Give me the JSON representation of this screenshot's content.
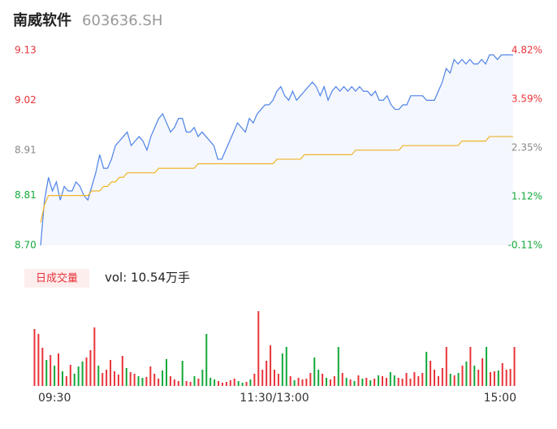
{
  "header": {
    "name": "南威软件",
    "code": "603636.SH"
  },
  "chart_data": {
    "type": "intraday",
    "x": [
      0,
      2,
      4,
      6,
      8,
      10,
      12,
      14,
      16,
      18,
      20,
      22,
      24,
      26,
      28,
      30,
      32,
      34,
      36,
      38,
      40,
      42,
      44,
      46,
      48,
      50,
      52,
      54,
      56,
      58,
      60,
      62,
      64,
      66,
      68,
      70,
      72,
      74,
      76,
      78,
      80,
      82,
      84,
      86,
      88,
      90,
      92,
      94,
      96,
      98,
      100,
      102,
      104,
      106,
      108,
      110,
      112,
      114,
      116,
      118,
      120,
      122,
      124,
      126,
      128,
      130,
      132,
      134,
      136,
      138,
      140,
      142,
      144,
      146,
      148,
      150,
      152,
      154,
      156,
      158,
      160,
      162,
      164,
      166,
      168,
      170,
      172,
      174,
      176,
      178,
      180,
      182,
      184,
      186,
      188,
      190,
      192,
      194,
      196,
      198,
      200,
      202,
      204,
      206,
      208,
      210,
      212,
      214,
      216,
      218,
      220,
      222,
      224,
      226,
      228,
      230,
      232,
      234,
      236,
      238,
      240
    ],
    "xlim": [
      0,
      240
    ],
    "xticks": [
      {
        "value": 0,
        "label": "09:30"
      },
      {
        "value": 120,
        "label": "11:30/13:00"
      },
      {
        "value": 240,
        "label": "15:00"
      }
    ],
    "ylim": [
      8.7,
      9.13
    ],
    "yticks": [
      {
        "value": 8.7,
        "label": "8.70"
      },
      8.81,
      8.91,
      9.02,
      9.13
    ],
    "y2lim": [
      -0.11,
      4.82
    ],
    "y2ticks": [
      {
        "value": -0.11,
        "label": "-0.11%"
      },
      {
        "value": 1.12,
        "label": "1.12%"
      },
      {
        "value": 2.35,
        "label": "2.35%"
      },
      {
        "value": 3.59,
        "label": "3.59%"
      },
      {
        "value": 4.82,
        "label": "4.82%"
      }
    ],
    "up_color": "#e8343a",
    "down_color": "#14a83b",
    "flat_color": "#888888",
    "series": [
      {
        "color": "#4e82e6",
        "values": [
          8.7,
          8.8,
          8.85,
          8.82,
          8.84,
          8.8,
          8.83,
          8.82,
          8.82,
          8.84,
          8.83,
          8.81,
          8.8,
          8.83,
          8.86,
          8.9,
          8.87,
          8.87,
          8.89,
          8.92,
          8.93,
          8.94,
          8.95,
          8.92,
          8.93,
          8.94,
          8.93,
          8.91,
          8.94,
          8.96,
          8.98,
          8.99,
          8.97,
          8.95,
          8.96,
          8.98,
          8.98,
          8.95,
          8.95,
          8.96,
          8.94,
          8.95,
          8.94,
          8.93,
          8.92,
          8.89,
          8.89,
          8.91,
          8.93,
          8.95,
          8.97,
          8.96,
          8.95,
          8.98,
          8.97,
          8.99,
          9.0,
          9.01,
          9.01,
          9.02,
          9.04,
          9.05,
          9.03,
          9.02,
          9.04,
          9.02,
          9.03,
          9.04,
          9.05,
          9.06,
          9.05,
          9.03,
          9.05,
          9.02,
          9.04,
          9.05,
          9.04,
          9.05,
          9.04,
          9.05,
          9.04,
          9.05,
          9.04,
          9.04,
          9.03,
          9.04,
          9.02,
          9.02,
          9.03,
          9.01,
          9.0,
          9.0,
          9.01,
          9.01,
          9.03,
          9.03,
          9.03,
          9.03,
          9.02,
          9.02,
          9.02,
          9.04,
          9.06,
          9.09,
          9.08,
          9.11,
          9.1,
          9.11,
          9.1,
          9.11,
          9.1,
          9.1,
          9.11,
          9.1,
          9.12,
          9.12,
          9.11,
          9.12,
          9.12,
          9.12,
          9.12
        ]
      },
      {
        "color": "#f0b429",
        "values": [
          8.75,
          8.79,
          8.81,
          8.81,
          8.81,
          8.81,
          8.81,
          8.81,
          8.81,
          8.81,
          8.81,
          8.81,
          8.81,
          8.82,
          8.82,
          8.82,
          8.83,
          8.83,
          8.84,
          8.84,
          8.85,
          8.85,
          8.86,
          8.86,
          8.86,
          8.86,
          8.86,
          8.86,
          8.86,
          8.86,
          8.87,
          8.87,
          8.87,
          8.87,
          8.87,
          8.87,
          8.87,
          8.87,
          8.87,
          8.87,
          8.88,
          8.88,
          8.88,
          8.88,
          8.88,
          8.88,
          8.88,
          8.88,
          8.88,
          8.88,
          8.88,
          8.88,
          8.88,
          8.88,
          8.88,
          8.88,
          8.88,
          8.88,
          8.88,
          8.88,
          8.89,
          8.89,
          8.89,
          8.89,
          8.89,
          8.89,
          8.89,
          8.9,
          8.9,
          8.9,
          8.9,
          8.9,
          8.9,
          8.9,
          8.9,
          8.9,
          8.9,
          8.9,
          8.9,
          8.9,
          8.91,
          8.91,
          8.91,
          8.91,
          8.91,
          8.91,
          8.91,
          8.91,
          8.91,
          8.91,
          8.91,
          8.91,
          8.92,
          8.92,
          8.92,
          8.92,
          8.92,
          8.92,
          8.92,
          8.92,
          8.92,
          8.92,
          8.92,
          8.92,
          8.92,
          8.92,
          8.92,
          8.93,
          8.93,
          8.93,
          8.93,
          8.93,
          8.93,
          8.93,
          8.94,
          8.94,
          8.94,
          8.94,
          8.94,
          8.94,
          8.94
        ]
      }
    ],
    "volume": {
      "title": "日成交量",
      "summary": "vol: 10.54万手",
      "ylim": [
        0,
        1000
      ],
      "values": [
        700,
        640,
        470,
        320,
        380,
        250,
        400,
        180,
        120,
        260,
        150,
        240,
        300,
        350,
        440,
        720,
        250,
        160,
        200,
        320,
        180,
        140,
        370,
        220,
        170,
        150,
        120,
        100,
        110,
        240,
        150,
        90,
        190,
        330,
        120,
        80,
        60,
        310,
        60,
        50,
        120,
        90,
        200,
        640,
        100,
        80,
        60,
        40,
        50,
        70,
        90,
        60,
        40,
        50,
        80,
        150,
        920,
        200,
        310,
        500,
        200,
        150,
        400,
        480,
        120,
        70,
        100,
        80,
        90,
        160,
        350,
        200,
        150,
        100,
        80,
        120,
        480,
        160,
        100,
        80,
        60,
        130,
        90,
        100,
        70,
        90,
        130,
        120,
        100,
        170,
        130,
        100,
        90,
        160,
        90,
        170,
        120,
        160,
        420,
        310,
        200,
        120,
        220,
        480,
        150,
        130,
        160,
        250,
        300,
        480,
        250,
        200,
        340,
        480,
        170,
        180,
        190,
        280,
        200,
        210,
        480
      ]
    }
  }
}
